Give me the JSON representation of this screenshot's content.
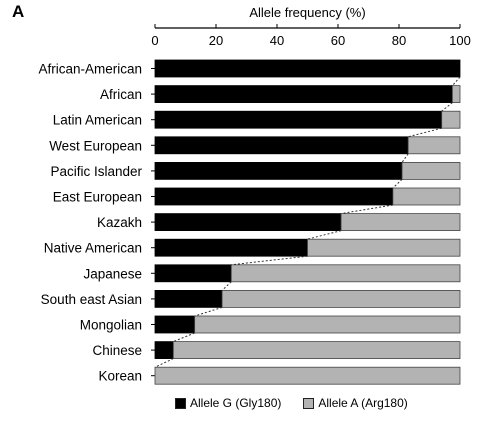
{
  "panel_label": "A",
  "chart_data": {
    "type": "bar",
    "orientation": "horizontal",
    "stacked": true,
    "title": "",
    "xlabel": "Allele frequency (%)",
    "ylabel": "",
    "xlim": [
      0,
      100
    ],
    "xticks": [
      "0",
      "20",
      "40",
      "60",
      "80",
      "100"
    ],
    "categories": [
      "African-American",
      "African",
      "Latin American",
      "West European",
      "Pacific Islander",
      "East European",
      "Kazakh",
      "Native American",
      "Japanese",
      "South east Asian",
      "Mongolian",
      "Chinese",
      "Korean"
    ],
    "series": [
      {
        "name": "Allele G (Gly180)",
        "color": "#000000",
        "values": [
          100,
          97.5,
          94,
          83,
          81,
          78,
          61,
          50,
          25,
          22,
          13,
          6,
          0
        ]
      },
      {
        "name": "Allele A (Arg180)",
        "color": "#b3b3b3",
        "values": [
          0,
          2.5,
          6,
          17,
          19,
          22,
          39,
          50,
          75,
          78,
          87,
          94,
          100
        ]
      }
    ],
    "grid": false,
    "legend": "bottom",
    "connector_line": "dashed"
  }
}
